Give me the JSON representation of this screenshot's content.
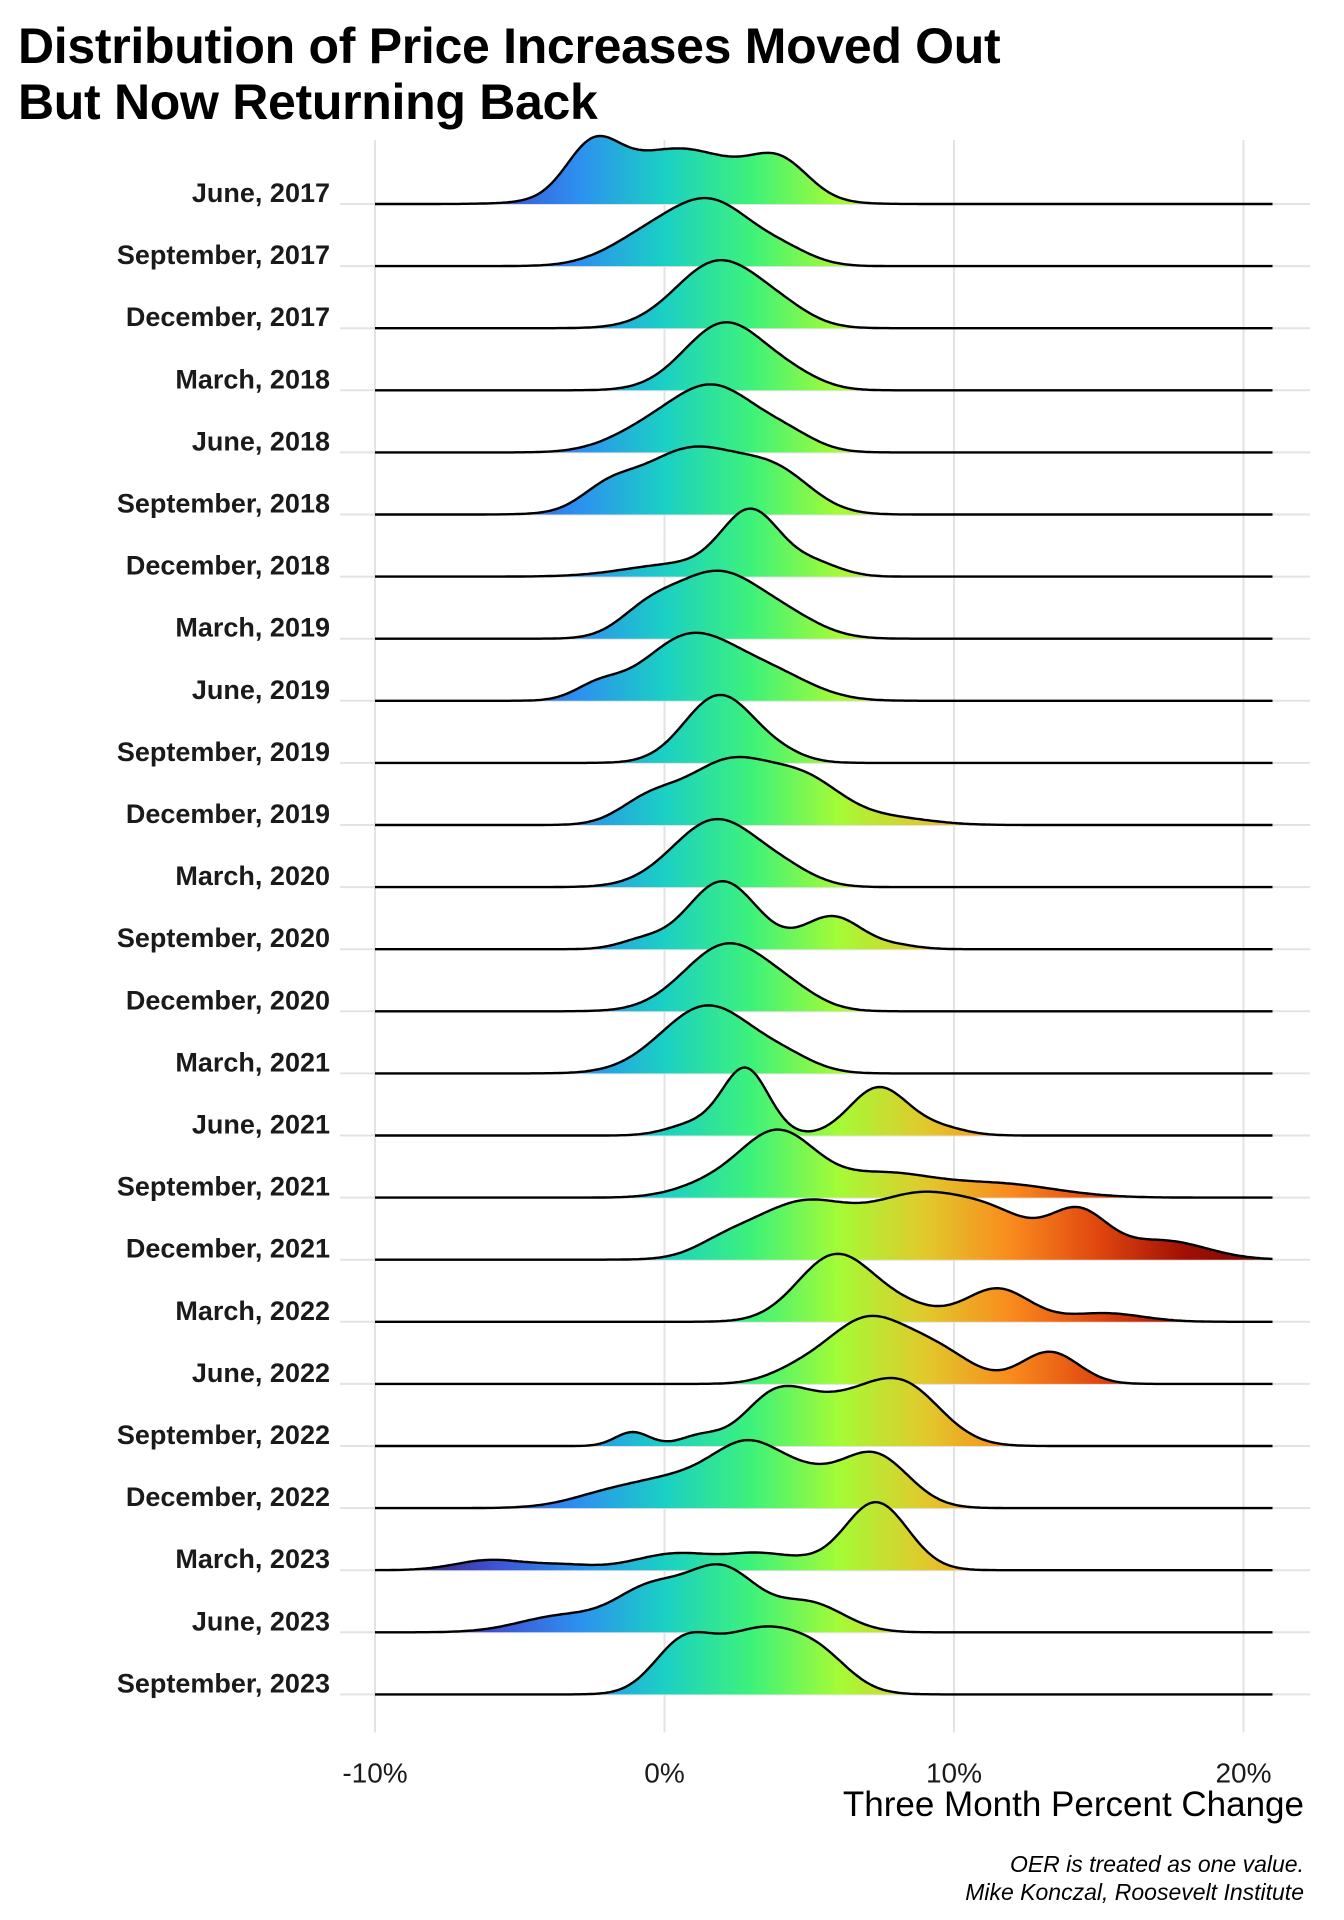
{
  "title_lines": [
    "Distribution of Price Increases Moved Out",
    "But Now Returning Back"
  ],
  "xlabel": "Three Month Percent Change",
  "caption_lines": [
    "OER is treated as one value.",
    "Mike Konczal, Roosevelt Institute"
  ],
  "chart_data": {
    "type": "ridgeline",
    "x_unit": "percent",
    "xlim": [
      -10,
      21
    ],
    "xticks": [
      -10,
      0,
      10,
      20
    ],
    "xtick_labels": [
      "-10%",
      "0%",
      "10%",
      "20%"
    ],
    "grid": true,
    "fill": "gradient by x value (blue low, green mid, yellow/orange/red high)",
    "colors": {
      "gradient_stops": [
        {
          "x": -10,
          "color": "#30123b"
        },
        {
          "x": -6,
          "color": "#3f4fd1"
        },
        {
          "x": -3,
          "color": "#2d8ff0"
        },
        {
          "x": 0,
          "color": "#1bd0c4"
        },
        {
          "x": 3,
          "color": "#3df27a"
        },
        {
          "x": 6,
          "color": "#a4fb36"
        },
        {
          "x": 9,
          "color": "#e1c92c"
        },
        {
          "x": 12,
          "color": "#f98a1d"
        },
        {
          "x": 15,
          "color": "#e0460f"
        },
        {
          "x": 18,
          "color": "#a00f04"
        },
        {
          "x": 21,
          "color": "#7a0403"
        }
      ],
      "gridline": "#e3e3e3",
      "outline": "#000000"
    },
    "series": [
      {
        "name": "June, 2017",
        "peaks": [
          [
            0.5,
            2.2,
            1.0
          ],
          [
            -2.5,
            0.9,
            0.8
          ],
          [
            4.0,
            1.0,
            0.6
          ]
        ]
      },
      {
        "name": "September, 2017",
        "peaks": [
          [
            1.7,
            1.4,
            1.0
          ],
          [
            -0.6,
            1.4,
            0.45
          ],
          [
            4.2,
            1.0,
            0.2
          ]
        ]
      },
      {
        "name": "December, 2017",
        "peaks": [
          [
            1.9,
            1.5,
            1.0
          ],
          [
            4.2,
            1.0,
            0.15
          ]
        ]
      },
      {
        "name": "March, 2018",
        "peaks": [
          [
            2.1,
            1.4,
            1.0
          ],
          [
            4.5,
            1.0,
            0.15
          ]
        ]
      },
      {
        "name": "June, 2018",
        "peaks": [
          [
            1.7,
            1.5,
            1.0
          ],
          [
            -0.8,
            1.3,
            0.25
          ],
          [
            4.3,
            1.0,
            0.2
          ]
        ]
      },
      {
        "name": "September, 2018",
        "peaks": [
          [
            1.0,
            1.9,
            1.0
          ],
          [
            -2.0,
            0.9,
            0.25
          ],
          [
            4.0,
            1.2,
            0.45
          ]
        ]
      },
      {
        "name": "December, 2018",
        "peaks": [
          [
            3.0,
            1.0,
            1.0
          ],
          [
            0.5,
            1.8,
            0.2
          ],
          [
            5.2,
            0.9,
            0.2
          ]
        ]
      },
      {
        "name": "March, 2019",
        "peaks": [
          [
            1.8,
            1.5,
            1.0
          ],
          [
            -0.6,
            1.0,
            0.35
          ],
          [
            4.3,
            1.2,
            0.25
          ]
        ]
      },
      {
        "name": "June, 2019",
        "peaks": [
          [
            0.9,
            1.6,
            1.0
          ],
          [
            -2.3,
            0.8,
            0.2
          ],
          [
            3.8,
            1.4,
            0.35
          ]
        ]
      },
      {
        "name": "September, 2019",
        "peaks": [
          [
            1.9,
            1.2,
            1.0
          ],
          [
            4.0,
            0.9,
            0.1
          ]
        ]
      },
      {
        "name": "December, 2019",
        "peaks": [
          [
            2.3,
            1.6,
            0.95
          ],
          [
            5.0,
            1.2,
            0.5
          ],
          [
            -0.6,
            1.0,
            0.3
          ],
          [
            7.5,
            1.5,
            0.12
          ]
        ]
      },
      {
        "name": "March, 2020",
        "peaks": [
          [
            1.8,
            1.5,
            1.0
          ],
          [
            4.3,
            1.0,
            0.15
          ]
        ]
      },
      {
        "name": "September, 2020",
        "peaks": [
          [
            2.0,
            1.2,
            1.0
          ],
          [
            5.8,
            1.0,
            0.48
          ],
          [
            -0.8,
            0.8,
            0.12
          ],
          [
            8.0,
            0.8,
            0.05
          ]
        ]
      },
      {
        "name": "December, 2020",
        "peaks": [
          [
            2.2,
            1.5,
            1.0
          ],
          [
            4.5,
            1.0,
            0.15
          ]
        ]
      },
      {
        "name": "March, 2021",
        "peaks": [
          [
            1.5,
            1.6,
            1.0
          ],
          [
            4.3,
            1.0,
            0.15
          ]
        ]
      },
      {
        "name": "June, 2021",
        "peaks": [
          [
            2.8,
            0.8,
            0.9
          ],
          [
            7.4,
            1.0,
            0.65
          ],
          [
            1.0,
            0.9,
            0.15
          ],
          [
            9.5,
            0.9,
            0.1
          ]
        ]
      },
      {
        "name": "September, 2021",
        "peaks": [
          [
            3.9,
            1.3,
            0.85
          ],
          [
            7.5,
            1.7,
            0.3
          ],
          [
            11.5,
            2.0,
            0.18
          ],
          [
            1.5,
            1.2,
            0.15
          ]
        ]
      },
      {
        "name": "December, 2021",
        "peaks": [
          [
            4.8,
            1.8,
            0.45
          ],
          [
            8.8,
            1.6,
            0.45
          ],
          [
            11.5,
            1.4,
            0.3
          ],
          [
            14.3,
            1.0,
            0.35
          ],
          [
            17.2,
            1.5,
            0.15
          ],
          [
            2.0,
            1.0,
            0.08
          ]
        ]
      },
      {
        "name": "March, 2022",
        "peaks": [
          [
            5.9,
            1.3,
            1.0
          ],
          [
            8.3,
            1.2,
            0.2
          ],
          [
            11.5,
            1.1,
            0.5
          ],
          [
            15.2,
            1.3,
            0.13
          ]
        ]
      },
      {
        "name": "June, 2022",
        "peaks": [
          [
            7.0,
            1.4,
            0.8
          ],
          [
            9.5,
            1.2,
            0.35
          ],
          [
            13.3,
            1.0,
            0.4
          ],
          [
            4.5,
            1.0,
            0.12
          ]
        ]
      },
      {
        "name": "September, 2022",
        "peaks": [
          [
            8.3,
            1.3,
            0.6
          ],
          [
            6.0,
            1.4,
            0.4
          ],
          [
            3.8,
            1.1,
            0.5
          ],
          [
            -1.1,
            0.6,
            0.15
          ],
          [
            1.2,
            0.7,
            0.1
          ]
        ]
      },
      {
        "name": "December, 2022",
        "peaks": [
          [
            2.9,
            1.3,
            0.7
          ],
          [
            7.2,
            1.2,
            0.6
          ],
          [
            -1.5,
            1.5,
            0.2
          ],
          [
            0.5,
            1.2,
            0.2
          ],
          [
            5.0,
            1.0,
            0.2
          ]
        ]
      },
      {
        "name": "March, 2023",
        "peaks": [
          [
            7.3,
            1.1,
            1.0
          ],
          [
            -6.0,
            1.2,
            0.15
          ],
          [
            0.5,
            1.5,
            0.25
          ],
          [
            3.3,
            1.0,
            0.2
          ],
          [
            -3.5,
            1.0,
            0.07
          ],
          [
            4.8,
            0.8,
            0.08
          ]
        ]
      },
      {
        "name": "June, 2023",
        "peaks": [
          [
            2.0,
            1.2,
            0.75
          ],
          [
            -0.5,
            1.2,
            0.5
          ],
          [
            5.0,
            1.2,
            0.35
          ],
          [
            -3.5,
            1.5,
            0.2
          ]
        ]
      },
      {
        "name": "September, 2023",
        "peaks": [
          [
            3.4,
            1.6,
            0.8
          ],
          [
            0.6,
            1.0,
            0.55
          ],
          [
            5.5,
            1.0,
            0.25
          ]
        ]
      }
    ]
  }
}
